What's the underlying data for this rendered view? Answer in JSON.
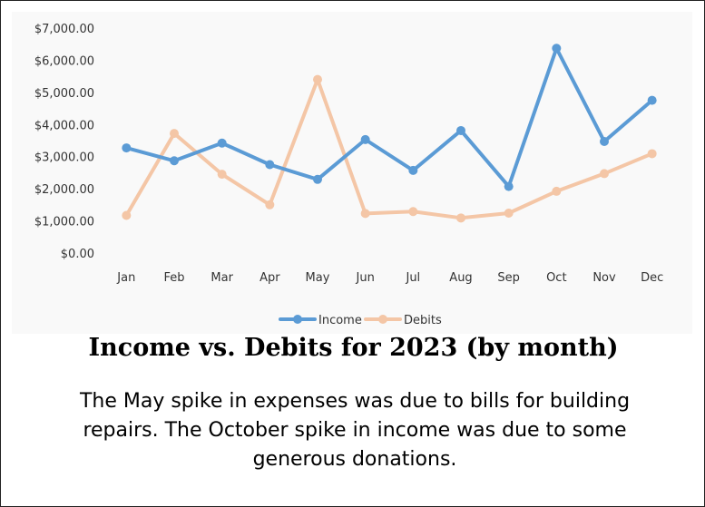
{
  "chart_data": {
    "type": "line",
    "categories": [
      "Jan",
      "Feb",
      "Mar",
      "Apr",
      "May",
      "Jun",
      "Jul",
      "Aug",
      "Sep",
      "Oct",
      "Nov",
      "Dec"
    ],
    "series": [
      {
        "name": "Income",
        "color": "#5b9bd5",
        "values": [
          3300,
          2900,
          3450,
          2780,
          2320,
          3560,
          2600,
          3840,
          2100,
          6400,
          3500,
          4780
        ]
      },
      {
        "name": "Debits",
        "color": "#f4c6a6",
        "values": [
          1200,
          3750,
          2480,
          1530,
          5430,
          1260,
          1320,
          1120,
          1270,
          1950,
          2500,
          3120
        ]
      }
    ],
    "ylim": [
      0,
      7000
    ],
    "yticks": [
      0,
      1000,
      2000,
      3000,
      4000,
      5000,
      6000,
      7000
    ],
    "ytick_labels": [
      "$0.00",
      "$1,000.00",
      "$2,000.00",
      "$3,000.00",
      "$4,000.00",
      "$5,000.00",
      "$6,000.00",
      "$7,000.00"
    ],
    "grid": false,
    "legend_position": "bottom",
    "title": "Income vs. Debits for 2023 (by month)"
  },
  "caption": "The May spike in expenses was due to bills for building repairs.  The October spike in income was due to some generous donations."
}
